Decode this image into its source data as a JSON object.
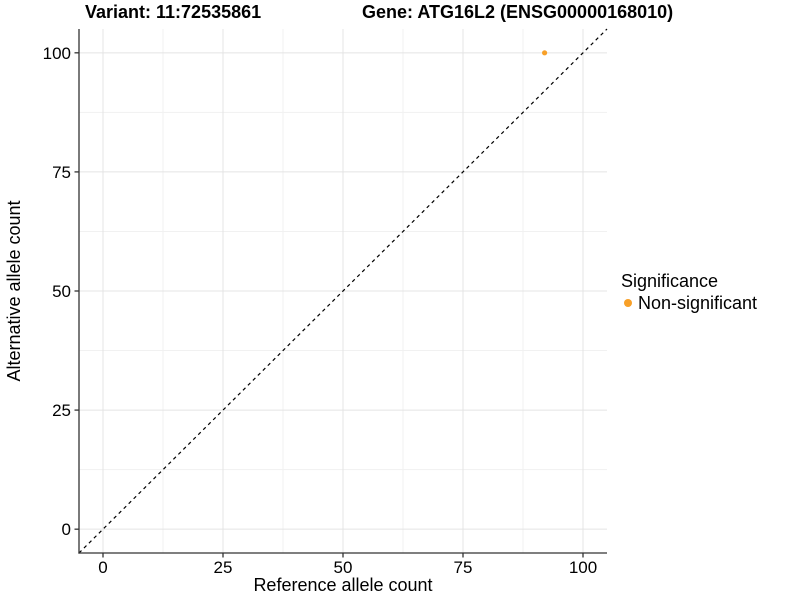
{
  "chart_data": {
    "type": "scatter",
    "title_variant": "Variant: 11:72535861",
    "title_gene": "Gene: ATG16L2 (ENSG00000168010)",
    "xlabel": "Reference allele count",
    "ylabel": "Alternative allele count",
    "xlim": [
      -5,
      105
    ],
    "ylim": [
      -5,
      105
    ],
    "x_ticks": [
      0,
      25,
      50,
      75,
      100
    ],
    "y_ticks": [
      0,
      25,
      50,
      75,
      100
    ],
    "x_minor_ticks": [
      12.5,
      37.5,
      62.5,
      87.5
    ],
    "y_minor_ticks": [
      12.5,
      37.5,
      62.5,
      87.5
    ],
    "grid": true,
    "points": [
      {
        "x": 92,
        "y": 100,
        "significance": "Non-significant"
      }
    ],
    "identity_line": {
      "slope": 1,
      "intercept": 0,
      "style": "dashed"
    },
    "legend": {
      "title": "Significance",
      "position": "right",
      "items": [
        {
          "label": "Non-significant",
          "color": "#F8A028"
        }
      ]
    },
    "colors": {
      "point": "#F8A028",
      "grid_major": "#E4E4E4",
      "grid_minor": "#F1F1F1",
      "axis_line": "#333333",
      "tick": "#333333",
      "identity_line": "#000000",
      "text": "#000000",
      "background": "#FFFFFF"
    }
  }
}
